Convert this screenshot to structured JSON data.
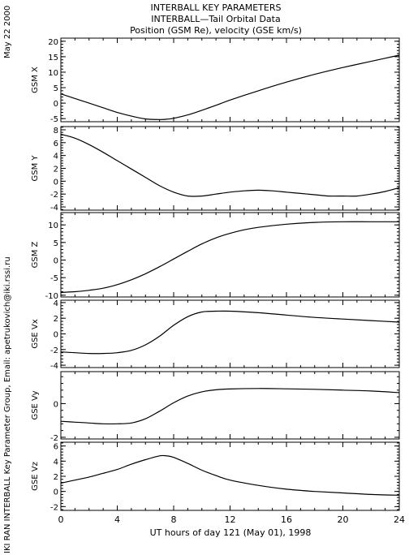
{
  "header": {
    "title_line1": "INTERBALL KEY PARAMETERS",
    "title_line2": "INTERBALL—Tail Orbital Data",
    "title_line3": "Position (GSM Re), velocity (GSE km/s)",
    "date_stamp": "May 22 2000",
    "credit": "IKI RAN INTERBALL Key Parameter Group, Email: apetrukovich@iki.rssi.ru"
  },
  "xaxis": {
    "label": "UT hours of day 121 (May 01), 1998",
    "ticks": [
      0,
      4,
      8,
      12,
      16,
      20,
      24
    ],
    "range": [
      0,
      24
    ]
  },
  "chart_data": [
    {
      "type": "line",
      "ylabel": "GSM X",
      "ylim": [
        -6,
        21
      ],
      "yticks": [
        -5,
        0,
        5,
        10,
        15,
        20
      ],
      "x": [
        0,
        1,
        2,
        3,
        4,
        5,
        6,
        7,
        7.5,
        8,
        9,
        10,
        11,
        12,
        14,
        16,
        18,
        20,
        22,
        23,
        24
      ],
      "values": [
        3,
        1.5,
        0,
        -1.5,
        -3,
        -4.2,
        -5.1,
        -5.3,
        -5.2,
        -4.9,
        -3.8,
        -2.3,
        -0.7,
        1.0,
        4.0,
        6.8,
        9.3,
        11.5,
        13.5,
        14.5,
        15.5
      ]
    },
    {
      "type": "line",
      "ylabel": "GSM Y",
      "ylim": [
        -4.5,
        8.5
      ],
      "yticks": [
        -4,
        -2,
        0,
        2,
        4,
        6,
        8
      ],
      "x": [
        0,
        1,
        2,
        3,
        4,
        5,
        6,
        7,
        8,
        9,
        10,
        11,
        12,
        13,
        14,
        15,
        16,
        17,
        18,
        19,
        20,
        21,
        22,
        23,
        24
      ],
      "values": [
        7.3,
        6.7,
        5.7,
        4.5,
        3.2,
        1.9,
        0.6,
        -0.7,
        -1.7,
        -2.3,
        -2.3,
        -2.0,
        -1.7,
        -1.5,
        -1.4,
        -1.5,
        -1.7,
        -1.9,
        -2.1,
        -2.3,
        -2.3,
        -2.3,
        -2.0,
        -1.6,
        -1.0
      ]
    },
    {
      "type": "line",
      "ylabel": "GSM Z",
      "ylim": [
        -10.5,
        13.5
      ],
      "yticks": [
        -10,
        -5,
        0,
        5,
        10
      ],
      "x": [
        0,
        1,
        2,
        3,
        4,
        5,
        6,
        7,
        8,
        9,
        10,
        11,
        12,
        13,
        14,
        16,
        18,
        20,
        22,
        24
      ],
      "values": [
        -9.2,
        -9.0,
        -8.6,
        -8.0,
        -7.0,
        -5.6,
        -3.9,
        -1.9,
        0.3,
        2.5,
        4.6,
        6.3,
        7.6,
        8.6,
        9.3,
        10.2,
        10.7,
        10.9,
        10.9,
        10.9
      ]
    },
    {
      "type": "line",
      "ylabel": "GSE Vx",
      "ylim": [
        -4.3,
        4.3
      ],
      "yticks": [
        -4,
        -2,
        0,
        2,
        4
      ],
      "x": [
        0,
        1,
        2,
        3,
        4,
        5,
        6,
        7,
        8,
        9,
        10,
        11,
        12,
        14,
        16,
        18,
        20,
        22,
        24
      ],
      "values": [
        -2.3,
        -2.4,
        -2.5,
        -2.5,
        -2.4,
        -2.1,
        -1.4,
        -0.3,
        1.1,
        2.2,
        2.8,
        2.9,
        2.9,
        2.7,
        2.4,
        2.1,
        1.9,
        1.7,
        1.5
      ]
    },
    {
      "type": "line",
      "ylabel": "GSE Vy",
      "ylim": [
        -2.1,
        1.9
      ],
      "yticks": [
        -2,
        0
      ],
      "x": [
        0,
        1,
        2,
        3,
        4,
        5,
        6,
        7,
        8,
        9,
        10,
        11,
        12,
        14,
        16,
        18,
        20,
        22,
        24
      ],
      "values": [
        -1.05,
        -1.1,
        -1.15,
        -1.2,
        -1.2,
        -1.15,
        -0.9,
        -0.45,
        0.05,
        0.45,
        0.7,
        0.82,
        0.87,
        0.9,
        0.88,
        0.85,
        0.8,
        0.75,
        0.65
      ]
    },
    {
      "type": "line",
      "ylabel": "GSE Vz",
      "ylim": [
        -2.5,
        6.5
      ],
      "yticks": [
        -2,
        0,
        2,
        4,
        6
      ],
      "x": [
        0,
        1,
        2,
        3,
        4,
        5,
        6,
        7,
        7.5,
        8,
        9,
        10,
        11,
        12,
        14,
        16,
        18,
        20,
        22,
        24
      ],
      "values": [
        1.1,
        1.5,
        1.9,
        2.4,
        2.9,
        3.6,
        4.2,
        4.7,
        4.7,
        4.5,
        3.7,
        2.8,
        2.1,
        1.5,
        0.8,
        0.3,
        0.0,
        -0.2,
        -0.4,
        -0.5
      ]
    }
  ]
}
